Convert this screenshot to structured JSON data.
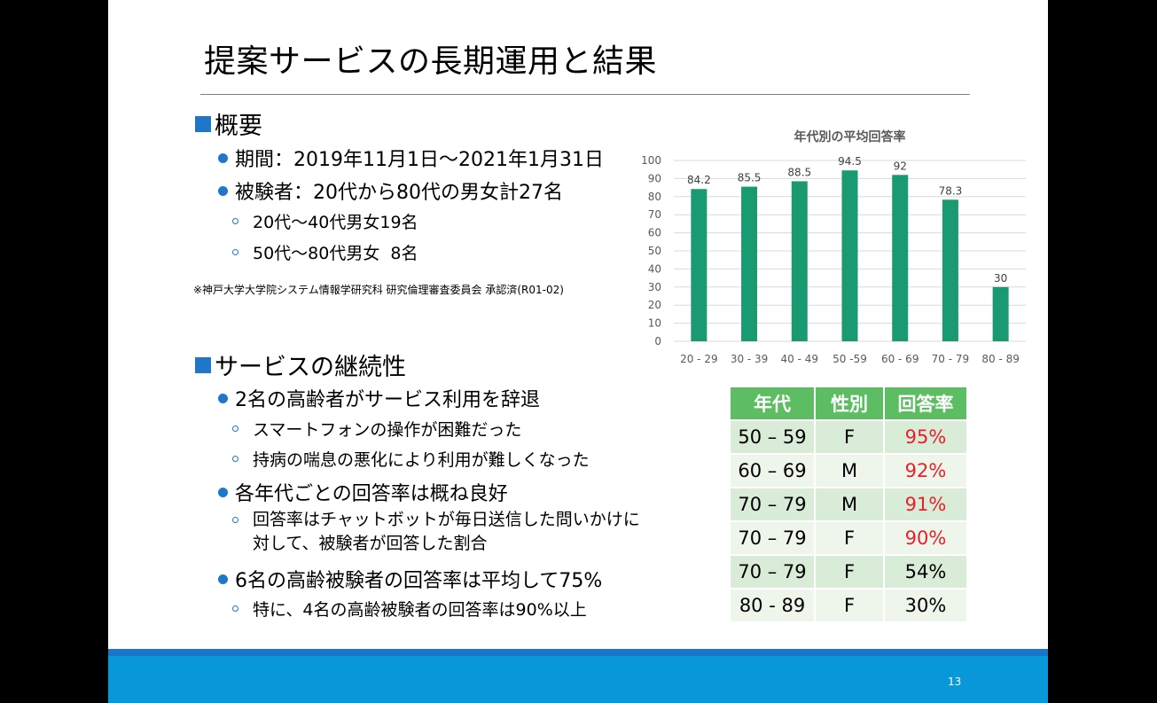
{
  "slide": {
    "title": "提案サービスの長期運用と結果",
    "page_number": "13",
    "accent_blue": "#1f77c9",
    "green": "#1a9a71"
  },
  "overview": {
    "heading": "概要",
    "period": "期間：2019年11月1日〜2021年1月31日",
    "subjects": "被験者：20代から80代の男女計27名",
    "sub1": "20代〜40代男女19名",
    "sub2": "50代〜80代男女  8名",
    "note": "※神戸大学大学院システム情報学研究科 研究倫理審査委員会 承認済(R01-02)"
  },
  "continuity": {
    "heading": "サービスの継続性",
    "b1": "2名の高齢者がサービス利用を辞退",
    "b1_s1": "スマートフォンの操作が困難だった",
    "b1_s2": "持病の喘息の悪化により利用が難しくなった",
    "b2": "各年代ごとの回答率は概ね良好",
    "b2_s1_line1": "回答率はチャットボットが毎日送信した問いかけに",
    "b2_s1_line2": "対して、被験者が回答した割合",
    "b3": "6名の高齢被験者の回答率は平均して75%",
    "b3_s1": "特に、4名の高齢被験者の回答率は90%以上"
  },
  "chart_data": {
    "type": "bar",
    "title": "年代別の平均回答率",
    "categories": [
      "20 - 29",
      "30 - 39",
      "40 - 49",
      "50 -59",
      "60 - 69",
      "70 - 79",
      "80 - 89"
    ],
    "values": [
      84.2,
      85.5,
      88.5,
      94.5,
      92,
      78.3,
      30
    ],
    "value_labels": [
      "84.2",
      "85.5",
      "88.5",
      "94.5",
      "92",
      "78.3",
      "30"
    ],
    "yticks": [
      "0",
      "10",
      "20",
      "30",
      "40",
      "50",
      "60",
      "70",
      "80",
      "90",
      "100"
    ],
    "ylim": [
      0,
      100
    ],
    "xlabel": "",
    "ylabel": "",
    "color": "#1a9a71"
  },
  "table": {
    "headers": [
      "年代",
      "性別",
      "回答率"
    ],
    "rows": [
      [
        "50 – 59",
        "F",
        "95%"
      ],
      [
        "60 – 69",
        "M",
        "92%"
      ],
      [
        "70 – 79",
        "M",
        "91%"
      ],
      [
        "70 – 79",
        "F",
        "90%"
      ],
      [
        "70 – 79",
        "F",
        "54%"
      ],
      [
        "80 - 89",
        "F",
        "30%"
      ]
    ],
    "highlight_color": "#e8202a"
  }
}
